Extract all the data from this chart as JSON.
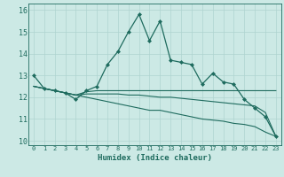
{
  "xlabel": "Humidex (Indice chaleur)",
  "background_color": "#cce9e5",
  "grid_color": "#afd4d0",
  "line_color": "#1e6b5e",
  "xlim": [
    -0.5,
    23.5
  ],
  "ylim": [
    9.8,
    16.3
  ],
  "xticks": [
    0,
    1,
    2,
    3,
    4,
    5,
    6,
    7,
    8,
    9,
    10,
    11,
    12,
    13,
    14,
    15,
    16,
    17,
    18,
    19,
    20,
    21,
    22,
    23
  ],
  "yticks": [
    10,
    11,
    12,
    13,
    14,
    15,
    16
  ],
  "line1_x": [
    0,
    1,
    2,
    3,
    4,
    5,
    6,
    7,
    8,
    9,
    10,
    11,
    12,
    13,
    14,
    15,
    16,
    17,
    18,
    19,
    20,
    21,
    22,
    23
  ],
  "line1_y": [
    13.0,
    12.4,
    12.3,
    12.2,
    11.9,
    12.3,
    12.5,
    13.5,
    14.1,
    15.0,
    15.8,
    14.6,
    15.5,
    13.7,
    13.6,
    13.5,
    12.6,
    13.1,
    12.7,
    12.6,
    11.9,
    11.5,
    11.1,
    10.2
  ],
  "line2_x": [
    0,
    1,
    2,
    3,
    4,
    5,
    6,
    7,
    8,
    9,
    10,
    11,
    12,
    13,
    14,
    15,
    16,
    17,
    18,
    19,
    20,
    21,
    22,
    23
  ],
  "line2_y": [
    12.5,
    12.4,
    12.3,
    12.2,
    12.1,
    12.25,
    12.3,
    12.3,
    12.3,
    12.3,
    12.3,
    12.3,
    12.3,
    12.3,
    12.3,
    12.3,
    12.3,
    12.3,
    12.3,
    12.3,
    12.3,
    12.3,
    12.3,
    12.3
  ],
  "line3_x": [
    0,
    1,
    2,
    3,
    4,
    5,
    6,
    7,
    8,
    9,
    10,
    11,
    12,
    13,
    14,
    15,
    16,
    17,
    18,
    19,
    20,
    21,
    22,
    23
  ],
  "line3_y": [
    12.5,
    12.4,
    12.3,
    12.2,
    12.1,
    12.15,
    12.15,
    12.15,
    12.15,
    12.1,
    12.1,
    12.05,
    12.0,
    12.0,
    11.95,
    11.9,
    11.85,
    11.8,
    11.75,
    11.7,
    11.65,
    11.6,
    11.3,
    10.2
  ],
  "line4_x": [
    0,
    1,
    2,
    3,
    4,
    5,
    6,
    7,
    8,
    9,
    10,
    11,
    12,
    13,
    14,
    15,
    16,
    17,
    18,
    19,
    20,
    21,
    22,
    23
  ],
  "line4_y": [
    12.5,
    12.4,
    12.3,
    12.2,
    12.1,
    12.0,
    11.9,
    11.8,
    11.7,
    11.6,
    11.5,
    11.4,
    11.4,
    11.3,
    11.2,
    11.1,
    11.0,
    10.95,
    10.9,
    10.8,
    10.75,
    10.65,
    10.4,
    10.2
  ]
}
